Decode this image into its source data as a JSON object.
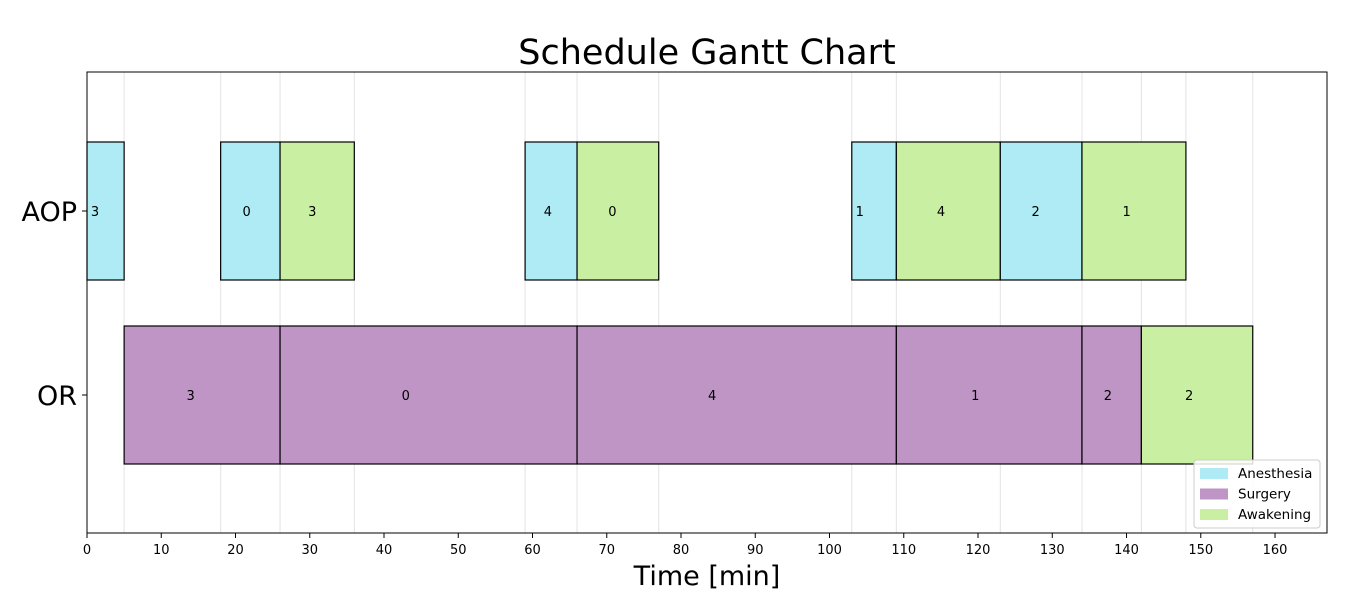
{
  "chart_data": {
    "type": "gantt",
    "title": "Schedule Gantt Chart",
    "xlabel": "Time [min]",
    "ylabel": "",
    "xlim": [
      0,
      167
    ],
    "xticks": [
      0,
      10,
      20,
      30,
      40,
      50,
      60,
      70,
      80,
      90,
      100,
      110,
      120,
      130,
      140,
      150,
      160
    ],
    "rows": [
      "AOP",
      "OR"
    ],
    "colors": {
      "Anesthesia": "#aeebf5",
      "Surgery": "#bf95c6",
      "Awakening": "#c9f0a2"
    },
    "legend": {
      "position": "lower-right",
      "entries": [
        "Anesthesia",
        "Surgery",
        "Awakening"
      ]
    },
    "grid": "x",
    "tasks": [
      {
        "row": "AOP",
        "phase": "Anesthesia",
        "start": 0,
        "end": 5,
        "label": "3"
      },
      {
        "row": "AOP",
        "phase": "Anesthesia",
        "start": 18,
        "end": 26,
        "label": "0"
      },
      {
        "row": "AOP",
        "phase": "Awakening",
        "start": 26,
        "end": 36,
        "label": "3"
      },
      {
        "row": "AOP",
        "phase": "Anesthesia",
        "start": 59,
        "end": 66,
        "label": "4"
      },
      {
        "row": "AOP",
        "phase": "Awakening",
        "start": 66,
        "end": 77,
        "label": "0"
      },
      {
        "row": "AOP",
        "phase": "Anesthesia",
        "start": 103,
        "end": 109,
        "label": "1"
      },
      {
        "row": "AOP",
        "phase": "Awakening",
        "start": 109,
        "end": 123,
        "label": "4"
      },
      {
        "row": "AOP",
        "phase": "Anesthesia",
        "start": 123,
        "end": 134,
        "label": "2"
      },
      {
        "row": "AOP",
        "phase": "Awakening",
        "start": 134,
        "end": 148,
        "label": "1"
      },
      {
        "row": "OR",
        "phase": "Surgery",
        "start": 5,
        "end": 26,
        "label": "3"
      },
      {
        "row": "OR",
        "phase": "Surgery",
        "start": 26,
        "end": 66,
        "label": "0"
      },
      {
        "row": "OR",
        "phase": "Surgery",
        "start": 66,
        "end": 109,
        "label": "4"
      },
      {
        "row": "OR",
        "phase": "Surgery",
        "start": 109,
        "end": 134,
        "label": "1"
      },
      {
        "row": "OR",
        "phase": "Surgery",
        "start": 134,
        "end": 142,
        "label": "2"
      },
      {
        "row": "OR",
        "phase": "Awakening",
        "start": 142,
        "end": 157,
        "label": "2"
      }
    ],
    "gridlines": [
      5,
      18,
      26,
      36,
      59,
      66,
      77,
      103,
      109,
      123,
      134,
      142,
      148,
      157
    ]
  }
}
